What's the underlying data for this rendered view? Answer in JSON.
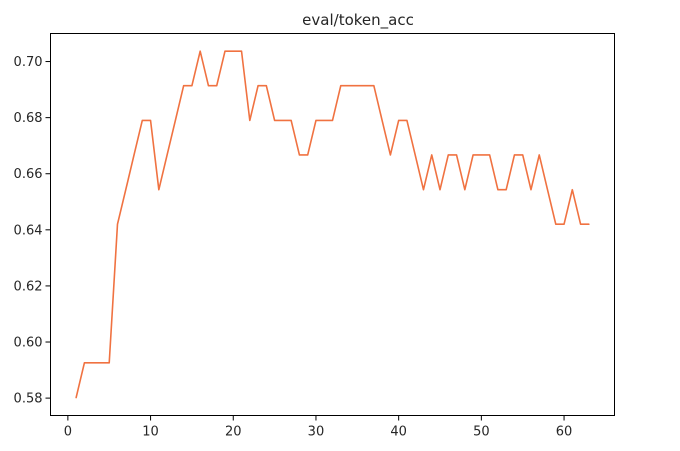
{
  "chart_data": {
    "type": "line",
    "title": "eval/token_acc",
    "xlabel": "",
    "ylabel": "",
    "xlim": [
      -2.1,
      66.1
    ],
    "ylim": [
      0.5738,
      0.71
    ],
    "xticks": [
      0,
      10,
      20,
      30,
      40,
      50,
      60
    ],
    "xtick_labels": [
      "0",
      "10",
      "20",
      "30",
      "40",
      "50",
      "60"
    ],
    "yticks": [
      0.58,
      0.6,
      0.62,
      0.64,
      0.66,
      0.68,
      0.7
    ],
    "ytick_labels": [
      "0.58",
      "0.60",
      "0.62",
      "0.64",
      "0.66",
      "0.68",
      "0.70"
    ],
    "grid": false,
    "line_color": "#f07241",
    "series": [
      {
        "x": [
          1,
          2,
          3,
          4,
          5,
          6,
          7,
          8,
          9,
          10,
          11,
          12,
          13,
          14,
          15,
          16,
          17,
          18,
          19,
          20,
          21,
          22,
          23,
          24,
          25,
          26,
          27,
          28,
          29,
          30,
          31,
          32,
          33,
          34,
          35,
          36,
          37,
          38,
          39,
          40,
          41,
          42,
          43,
          44,
          45,
          46,
          47,
          48,
          49,
          50,
          51,
          52,
          53,
          54,
          55,
          56,
          57,
          58,
          59,
          60,
          61,
          62,
          63
        ],
        "y": [
          0.5802,
          0.5926,
          0.5926,
          0.5926,
          0.5926,
          0.642,
          0.6543,
          0.6667,
          0.679,
          0.679,
          0.6543,
          0.6667,
          0.679,
          0.6914,
          0.6914,
          0.7037,
          0.6914,
          0.6914,
          0.7037,
          0.7037,
          0.7037,
          0.679,
          0.6914,
          0.6914,
          0.679,
          0.679,
          0.679,
          0.6667,
          0.6667,
          0.679,
          0.679,
          0.679,
          0.6914,
          0.6914,
          0.6914,
          0.6914,
          0.6914,
          0.679,
          0.6667,
          0.679,
          0.679,
          0.6667,
          0.6543,
          0.6667,
          0.6543,
          0.6667,
          0.6667,
          0.6543,
          0.6667,
          0.6667,
          0.6667,
          0.6543,
          0.6543,
          0.6667,
          0.6667,
          0.6543,
          0.6667,
          0.6543,
          0.642,
          0.642,
          0.6543,
          0.642,
          0.642
        ]
      }
    ]
  }
}
